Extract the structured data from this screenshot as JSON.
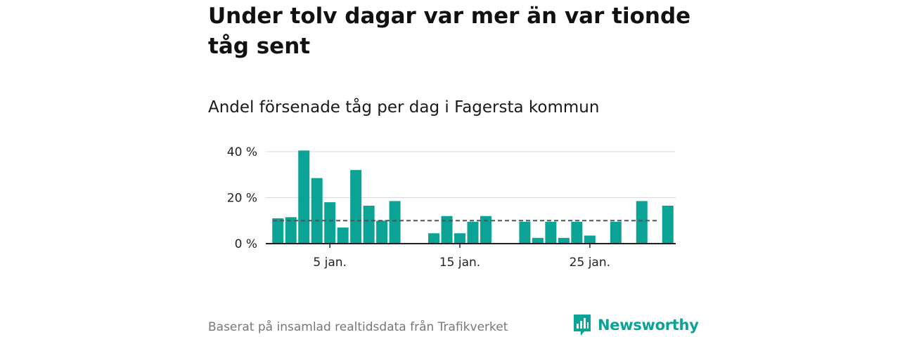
{
  "title": "Under tolv dagar var mer än var tionde tåg sent",
  "subtitle": "Andel försenade tåg per dag i Fagersta kommun",
  "source": "Baserat på insamlad realtidsdata från Trafikverket",
  "brand": "Newsworthy",
  "colors": {
    "bar": "#0aa395",
    "reference": "#555555",
    "grid": "#d9d9d9",
    "axis": "#222222"
  },
  "chart_data": {
    "type": "bar",
    "x": [
      1,
      2,
      3,
      4,
      5,
      6,
      7,
      8,
      9,
      10,
      11,
      12,
      13,
      14,
      15,
      16,
      17,
      18,
      19,
      20,
      21,
      22,
      23,
      24,
      25,
      26,
      27,
      28,
      29,
      30,
      31
    ],
    "values": [
      11,
      11.5,
      40.5,
      28.5,
      18,
      7,
      32,
      16.5,
      10,
      18.5,
      null,
      null,
      4.5,
      12,
      4.5,
      9.5,
      12,
      null,
      null,
      9.5,
      2.5,
      9.5,
      2.5,
      9.5,
      3.5,
      null,
      9.5,
      null,
      18.5,
      null,
      16.5
    ],
    "reference_line": 10,
    "ylim": [
      0,
      40
    ],
    "yticks": [
      0,
      20,
      40
    ],
    "ytick_labels": [
      "0 %",
      "20 %",
      "40 %"
    ],
    "xticks": [
      5,
      15,
      25
    ],
    "xtick_labels": [
      "5 jan.",
      "15 jan.",
      "25 jan."
    ],
    "grid": true,
    "xlabel": "",
    "ylabel": ""
  }
}
